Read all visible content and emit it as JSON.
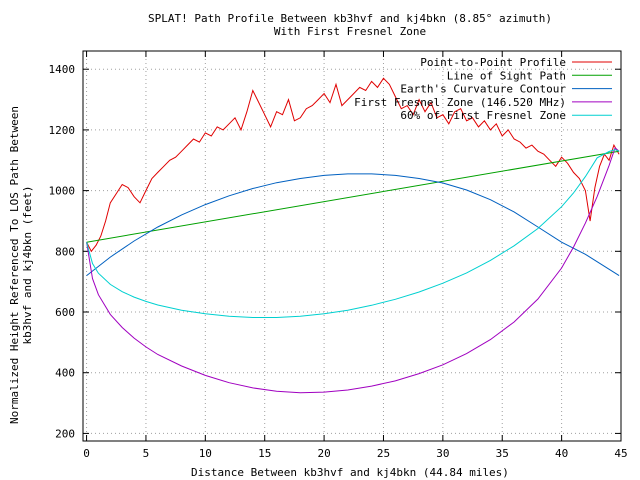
{
  "chart_data": {
    "type": "line",
    "title": "SPLAT! Path Profile Between kb3hvf and kj4bkn (8.85° azimuth)",
    "subtitle": "With First Fresnel Zone",
    "xlabel": "Distance Between kb3hvf and kj4bkn (44.84 miles)",
    "ylabel_line1": "Normalized Height Referenced To LOS Path Between",
    "ylabel_line2": "kb3hvf and kj4bkn (feet)",
    "xlim": [
      -0.3,
      45
    ],
    "ylim": [
      175,
      1460
    ],
    "x_ticks": [
      0,
      5,
      10,
      15,
      20,
      25,
      30,
      35,
      40,
      45
    ],
    "y_ticks": [
      200,
      400,
      600,
      800,
      1000,
      1200,
      1400
    ],
    "grid": true,
    "legend_position": "top-right",
    "series": [
      {
        "name": "Point-to-Point Profile",
        "color": "#e00000",
        "x": [
          0,
          0.4,
          0.8,
          1.2,
          1.6,
          2.0,
          2.5,
          3.0,
          3.5,
          4.0,
          4.5,
          5.0,
          5.5,
          6.0,
          6.5,
          7.0,
          7.5,
          8.0,
          8.5,
          9.0,
          9.5,
          10.0,
          10.5,
          11.0,
          11.5,
          12.0,
          12.5,
          13.0,
          13.5,
          14.0,
          14.5,
          15.0,
          15.5,
          16.0,
          16.5,
          17.0,
          17.5,
          18.0,
          18.5,
          19.0,
          19.5,
          20.0,
          20.5,
          21.0,
          21.5,
          22.0,
          22.5,
          23.0,
          23.5,
          24.0,
          24.5,
          25.0,
          25.5,
          26.0,
          26.5,
          27.0,
          27.5,
          28.0,
          28.5,
          29.0,
          29.5,
          30.0,
          30.5,
          31.0,
          31.5,
          32.0,
          32.5,
          33.0,
          33.5,
          34.0,
          34.5,
          35.0,
          35.5,
          36.0,
          36.5,
          37.0,
          37.5,
          38.0,
          38.5,
          39.0,
          39.5,
          40.0,
          40.5,
          41.0,
          41.5,
          42.0,
          42.4,
          42.8,
          43.2,
          43.6,
          44.0,
          44.4,
          44.84
        ],
        "y": [
          830,
          800,
          820,
          850,
          900,
          960,
          990,
          1020,
          1010,
          980,
          960,
          1000,
          1040,
          1060,
          1080,
          1100,
          1110,
          1130,
          1150,
          1170,
          1160,
          1190,
          1180,
          1210,
          1200,
          1220,
          1240,
          1200,
          1260,
          1330,
          1290,
          1250,
          1210,
          1260,
          1250,
          1300,
          1230,
          1240,
          1270,
          1280,
          1300,
          1320,
          1290,
          1350,
          1280,
          1300,
          1320,
          1340,
          1330,
          1360,
          1340,
          1370,
          1350,
          1310,
          1270,
          1280,
          1250,
          1300,
          1260,
          1290,
          1240,
          1250,
          1220,
          1260,
          1270,
          1230,
          1240,
          1210,
          1230,
          1200,
          1220,
          1180,
          1200,
          1170,
          1160,
          1140,
          1150,
          1130,
          1120,
          1100,
          1080,
          1110,
          1090,
          1060,
          1040,
          1000,
          900,
          1010,
          1080,
          1120,
          1100,
          1150,
          1120
        ]
      },
      {
        "name": "Line of Sight Path",
        "color": "#00a000",
        "x": [
          0,
          44.84
        ],
        "y": [
          830,
          1130
        ]
      },
      {
        "name": "Earth's Curvature Contour",
        "color": "#0060c0",
        "x": [
          0,
          2,
          4,
          6,
          8,
          10,
          12,
          14,
          16,
          18,
          20,
          22,
          24,
          26,
          28,
          30,
          32,
          34,
          36,
          38,
          40,
          42,
          44.84
        ],
        "y": [
          720,
          781,
          834,
          880,
          920,
          954,
          983,
          1007,
          1026,
          1040,
          1050,
          1055,
          1055,
          1050,
          1040,
          1025,
          1002,
          970,
          930,
          880,
          830,
          790,
          720
        ]
      },
      {
        "name": "First Fresnel Zone (146.520 MHz)",
        "color": "#a000c0",
        "x": [
          0,
          0.5,
          1,
          2,
          3,
          4,
          5,
          6,
          8,
          10,
          12,
          14,
          16,
          18,
          20,
          22,
          24,
          26,
          28,
          30,
          32,
          34,
          36,
          38,
          40,
          41,
          42,
          43,
          44,
          44.5,
          44.84
        ],
        "y": [
          830,
          710,
          657,
          592,
          549,
          514,
          485,
          460,
          422,
          391,
          367,
          350,
          339,
          334,
          336,
          343,
          356,
          373,
          397,
          426,
          463,
          509,
          567,
          643,
          745,
          814,
          893,
          981,
          1083,
          1141,
          1130
        ]
      },
      {
        "name": "60% of First Fresnel Zone",
        "color": "#00d0d0",
        "x": [
          0,
          0.5,
          1,
          2,
          3,
          4,
          5,
          6,
          8,
          10,
          12,
          14,
          16,
          18,
          20,
          22,
          24,
          26,
          28,
          30,
          32,
          34,
          36,
          38,
          40,
          41,
          42,
          43,
          44,
          44.5,
          44.84
        ],
        "y": [
          830,
          760,
          728,
          691,
          667,
          649,
          635,
          623,
          606,
          594,
          586,
          582,
          582,
          586,
          594,
          606,
          622,
          642,
          666,
          695,
          729,
          770,
          818,
          875,
          947,
          992,
          1046,
          1108,
          1129,
          1135,
          1130
        ]
      }
    ]
  }
}
